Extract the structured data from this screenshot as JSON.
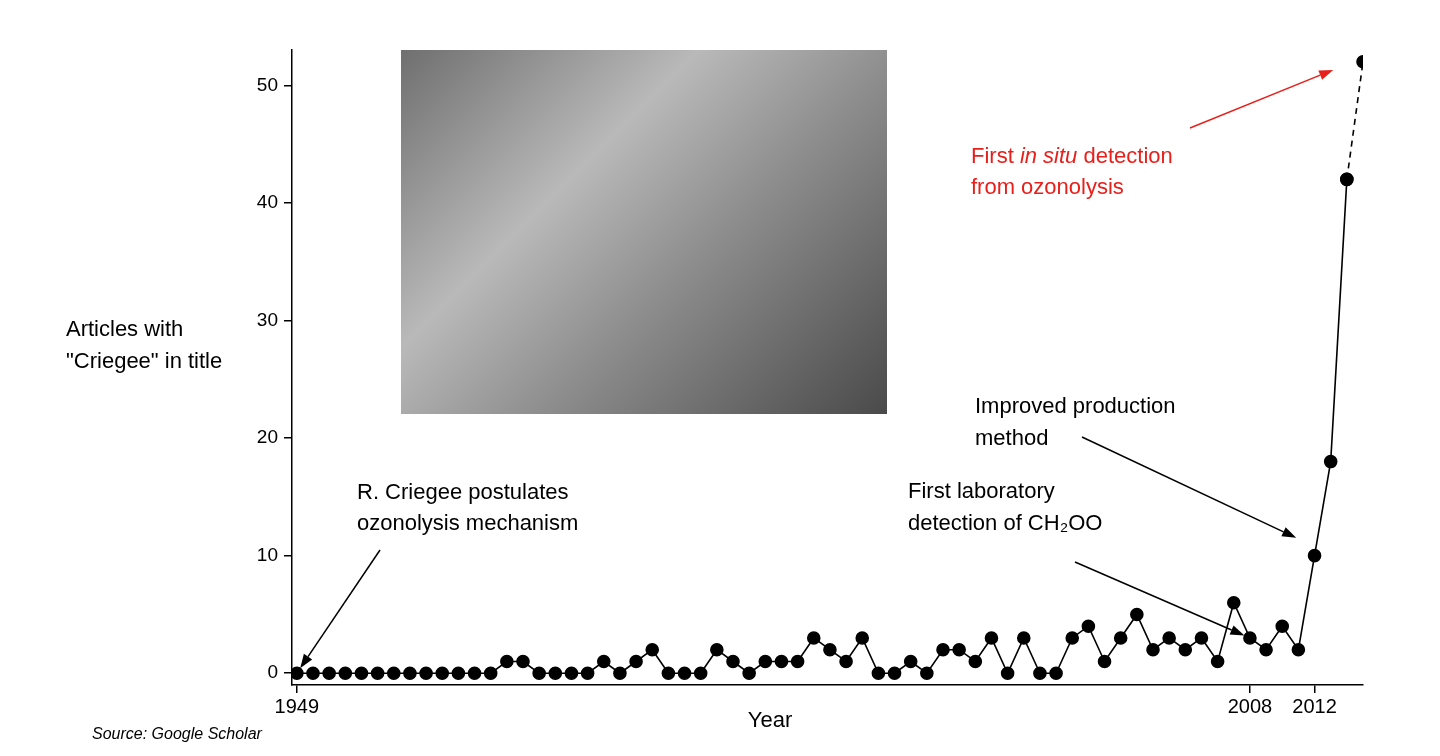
{
  "chart_data": {
    "type": "line",
    "x": [
      1949,
      1950,
      1951,
      1952,
      1953,
      1954,
      1955,
      1956,
      1957,
      1958,
      1959,
      1960,
      1961,
      1962,
      1963,
      1964,
      1965,
      1966,
      1967,
      1968,
      1969,
      1970,
      1971,
      1972,
      1973,
      1974,
      1975,
      1976,
      1977,
      1978,
      1979,
      1980,
      1981,
      1982,
      1983,
      1984,
      1985,
      1986,
      1987,
      1988,
      1989,
      1990,
      1991,
      1992,
      1993,
      1994,
      1995,
      1996,
      1997,
      1998,
      1999,
      2000,
      2001,
      2002,
      2003,
      2004,
      2005,
      2006,
      2007,
      2008,
      2009,
      2010,
      2011,
      2012,
      2013,
      2014,
      2015
    ],
    "series": [
      {
        "color": "#000000",
        "marker": "circle",
        "line_style": "solid",
        "values": [
          0,
          0,
          0,
          0,
          0,
          0,
          0,
          0,
          0,
          0,
          0,
          0,
          0,
          1,
          1,
          0,
          0,
          0,
          0,
          1,
          0,
          1,
          2,
          0,
          0,
          0,
          2,
          1,
          0,
          1,
          1,
          1,
          3,
          2,
          1,
          3,
          0,
          0,
          1,
          0,
          2,
          2,
          1,
          3,
          0,
          3,
          0,
          0,
          3,
          4,
          1,
          3,
          5,
          2,
          3,
          2,
          3,
          1,
          6,
          3,
          2,
          4,
          2,
          10,
          18,
          42,
          null
        ]
      },
      {
        "color": "#000000",
        "marker": "circle",
        "line_style": "dashed",
        "values": [
          null,
          null,
          null,
          null,
          null,
          null,
          null,
          null,
          null,
          null,
          null,
          null,
          null,
          null,
          null,
          null,
          null,
          null,
          null,
          null,
          null,
          null,
          null,
          null,
          null,
          null,
          null,
          null,
          null,
          null,
          null,
          null,
          null,
          null,
          null,
          null,
          null,
          null,
          null,
          null,
          null,
          null,
          null,
          null,
          null,
          null,
          null,
          null,
          null,
          null,
          null,
          null,
          null,
          null,
          null,
          null,
          null,
          null,
          null,
          null,
          null,
          null,
          null,
          null,
          null,
          42,
          52
        ]
      }
    ],
    "xlim": [
      1948.7,
      2015
    ],
    "xticks": [
      1949,
      2008,
      2012
    ],
    "ylim": [
      -1,
      53
    ],
    "yticks": [
      0,
      10,
      20,
      30,
      40,
      50
    ],
    "grid": false,
    "x_label": "Year",
    "y_label": [
      "Articles with",
      "\"Criegee\" in title"
    ],
    "source": "Source: Google Scholar",
    "annotations": [
      {
        "lines": [
          [
            {
              "text": "R. Criegee postulates"
            }
          ],
          [
            {
              "text": "ozonolysis mechanism"
            }
          ]
        ],
        "x": 1949,
        "y": 0,
        "color": "#000000"
      },
      {
        "lines": [
          [
            {
              "text": "First laboratory"
            }
          ],
          [
            {
              "text": "detection of CH₂OO"
            }
          ]
        ],
        "x": 2008,
        "y": 3,
        "color": "#000000"
      },
      {
        "lines": [
          [
            {
              "text": "Improved production"
            }
          ],
          [
            {
              "text": "method"
            }
          ]
        ],
        "x": 2011.2,
        "y": 11.3,
        "color": "#000000"
      },
      {
        "lines": [
          [
            {
              "text": "First "
            },
            {
              "text": "in situ",
              "italic": true
            },
            {
              "text": " detection"
            }
          ],
          [
            {
              "text": "from ozonolysis"
            }
          ]
        ],
        "x": 2013.5,
        "y": 51.5,
        "color": "#e8201c"
      }
    ]
  }
}
